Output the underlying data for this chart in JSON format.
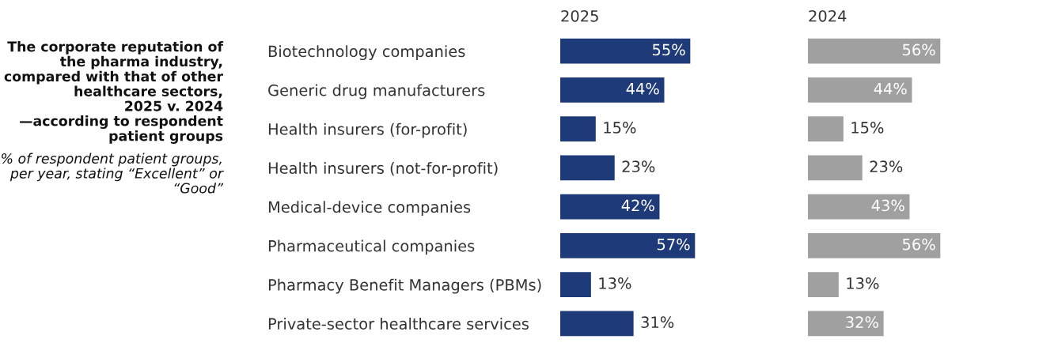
{
  "chart_data": [
    {
      "type": "bar",
      "orientation": "horizontal",
      "title": "2025",
      "annotations": [
        "The corporate reputation of\nthe pharma industry,\ncompared with that of other\nhealthcare sectors,\n2025 v. 2024\n—according to respondent\npatient groups",
        "% of respondent patient groups,\nper year, stating “Excellent” or\n“Good”"
      ],
      "categories": [
        "Biotechnology companies",
        "Generic drug manufacturers",
        "Health insurers (for-profit)",
        "Health insurers (not-for-profit)",
        "Medical-device companies",
        "Pharmaceutical companies",
        "Pharmacy Benefit Managers (PBMs)",
        "Private-sector healthcare services"
      ],
      "series": [
        {
          "color": "#1f3a78",
          "values": [
            55,
            44,
            15,
            23,
            42,
            57,
            13,
            31
          ],
          "value_labels": [
            "55%",
            "44%",
            "15%",
            "23%",
            "42%",
            "57%",
            "13%",
            "31%"
          ]
        }
      ],
      "tick_labels": "y"
    },
    {
      "type": "bar",
      "orientation": "horizontal",
      "title": "2024",
      "series": [
        {
          "color": "#a0a0a0",
          "values": [
            56,
            44,
            15,
            23,
            43,
            56,
            13,
            32
          ],
          "value_labels": [
            "56%",
            "44%",
            "15%",
            "23%",
            "43%",
            "56%",
            "13%",
            "32%"
          ]
        }
      ],
      "tick_labels": false
    }
  ]
}
